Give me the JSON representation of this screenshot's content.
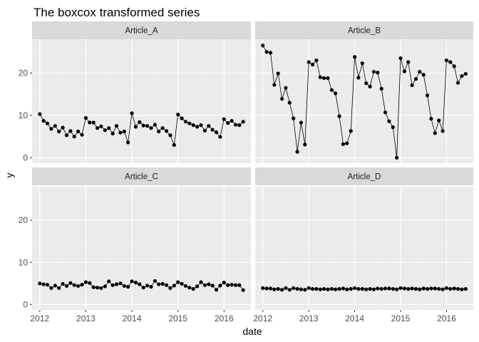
{
  "chart_data": {
    "type": "line",
    "title": "The boxcox transformed series",
    "xlabel": "date",
    "ylabel": "y",
    "facets_layout": "2x2",
    "x_start": "2012-01",
    "x_interval": "month",
    "xlim": [
      "2011-11",
      "2016-08"
    ],
    "ylim": [
      -1.3,
      28
    ],
    "x_ticks": [
      {
        "value": "2012-01",
        "label": "2012"
      },
      {
        "value": "2013-01",
        "label": "2013"
      },
      {
        "value": "2014-01",
        "label": "2014"
      },
      {
        "value": "2015-01",
        "label": "2015"
      },
      {
        "value": "2016-01",
        "label": "2016"
      }
    ],
    "y_ticks": [
      0,
      10,
      20
    ],
    "grid": true,
    "legend": "none",
    "colors": {
      "panel_bg": "#ebebeb",
      "strip_bg": "#d9d9d9",
      "grid_major": "#ffffff",
      "grid_minor": "#f2f2f2",
      "line": "#000000",
      "point": "#000000"
    },
    "panels": [
      {
        "name": "Article_A",
        "values": [
          10.3,
          8.7,
          8.1,
          6.8,
          7.5,
          6.2,
          7.1,
          5.3,
          6.3,
          5.0,
          6.2,
          5.4,
          9.4,
          8.3,
          8.3,
          7.0,
          7.4,
          6.5,
          7.0,
          5.7,
          7.5,
          5.9,
          6.2,
          3.6,
          10.5,
          7.3,
          8.4,
          7.6,
          7.5,
          7.0,
          7.8,
          6.2,
          7.0,
          6.3,
          5.3,
          3.0,
          10.2,
          9.3,
          8.5,
          8.1,
          7.7,
          7.3,
          7.7,
          6.4,
          7.5,
          6.6,
          6.0,
          4.9,
          9.1,
          8.2,
          8.7,
          7.8,
          7.7,
          8.5
        ]
      },
      {
        "name": "Article_B",
        "values": [
          26.5,
          25.0,
          24.8,
          17.2,
          19.9,
          13.9,
          16.5,
          13.0,
          9.3,
          1.4,
          8.3,
          3.1,
          22.6,
          22.0,
          23.0,
          19.0,
          18.8,
          18.8,
          16.0,
          15.2,
          9.8,
          3.2,
          3.4,
          6.3,
          23.8,
          18.9,
          22.3,
          17.6,
          16.8,
          20.3,
          20.1,
          16.3,
          10.7,
          8.6,
          7.2,
          0.0,
          23.5,
          20.4,
          22.6,
          17.1,
          18.6,
          20.3,
          19.6,
          14.7,
          9.2,
          5.8,
          8.8,
          6.3,
          23.0,
          22.6,
          21.6,
          17.7,
          19.3,
          19.8
        ]
      },
      {
        "name": "Article_C",
        "values": [
          5.0,
          4.8,
          4.7,
          3.9,
          4.5,
          3.9,
          4.9,
          4.4,
          5.1,
          4.6,
          4.4,
          4.7,
          5.3,
          5.1,
          4.1,
          4.0,
          3.9,
          4.3,
          5.5,
          4.6,
          4.8,
          5.0,
          4.4,
          4.2,
          5.5,
          5.2,
          4.8,
          4.0,
          4.5,
          4.2,
          5.6,
          4.8,
          4.9,
          4.6,
          3.9,
          4.5,
          5.3,
          4.9,
          4.4,
          4.0,
          3.7,
          4.3,
          5.3,
          4.6,
          4.8,
          4.5,
          3.5,
          4.5,
          5.2,
          4.6,
          4.7,
          4.6,
          4.6,
          3.4
        ]
      },
      {
        "name": "Article_D",
        "values": [
          3.9,
          3.8,
          3.8,
          3.6,
          3.7,
          3.5,
          3.9,
          3.5,
          3.9,
          3.7,
          3.6,
          3.5,
          3.9,
          3.7,
          3.7,
          3.6,
          3.7,
          3.6,
          3.7,
          3.6,
          3.7,
          3.8,
          3.6,
          3.7,
          3.9,
          3.7,
          3.7,
          3.6,
          3.7,
          3.6,
          3.8,
          3.7,
          3.8,
          3.8,
          3.7,
          3.6,
          3.9,
          3.8,
          3.7,
          3.8,
          3.7,
          3.6,
          3.8,
          3.7,
          3.8,
          3.8,
          3.7,
          3.6,
          3.9,
          3.7,
          3.8,
          3.7,
          3.6,
          3.7
        ]
      }
    ]
  }
}
